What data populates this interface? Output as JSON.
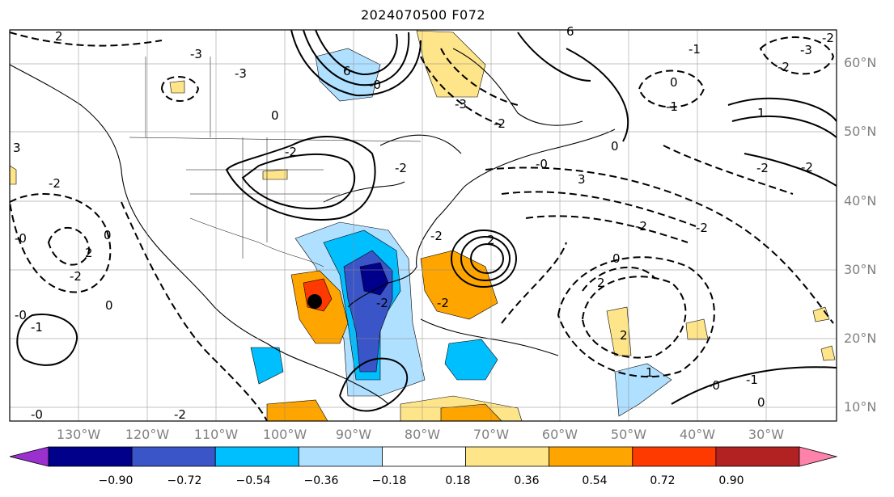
{
  "title": "2024070500 F072",
  "lat_labels": [
    "60°N",
    "50°N",
    "40°N",
    "30°N",
    "20°N",
    "10°N"
  ],
  "lon_labels": [
    "130°W",
    "120°W",
    "110°W",
    "100°W",
    "90°W",
    "80°W",
    "70°W",
    "60°W",
    "50°W",
    "40°W",
    "30°W"
  ],
  "contour_labels": [
    "2",
    "-3",
    "6",
    "-3",
    "0",
    "-1",
    "-2",
    "0",
    "-3",
    "3",
    "-2",
    "-2",
    "1",
    "-2",
    "-3",
    "-2",
    "2",
    "-0",
    "-2",
    "-2",
    "0",
    "3",
    "-0",
    "-2",
    "0",
    "2",
    "-2",
    "2",
    "-2",
    "-2",
    "-2",
    "0",
    "-0",
    "-1",
    "1",
    "-0",
    "-1",
    "2",
    "0",
    "-2",
    "0",
    "-0",
    "-0",
    "-1",
    "6",
    "-2",
    "-2"
  ],
  "colorbar": {
    "ticks": [
      "−0.90",
      "−0.72",
      "−0.54",
      "−0.36",
      "−0.18",
      "0.18",
      "0.36",
      "0.54",
      "0.72",
      "0.90"
    ],
    "colors": [
      "#9a30cd",
      "#00008b",
      "#3a55c8",
      "#00bfff",
      "#b0e0ff",
      "#ffffff",
      "#ffe58a",
      "#ffa500",
      "#ff3a00",
      "#b22222",
      "#ff82ab"
    ]
  },
  "chart_data": {
    "type": "heatmap",
    "title": "2024070500 F072",
    "map_extent_lon": [
      -140,
      -25
    ],
    "map_extent_lat": [
      7,
      65
    ],
    "lon_ticks": [
      -130,
      -120,
      -110,
      -100,
      -90,
      -80,
      -70,
      -60,
      -50,
      -40,
      -30
    ],
    "lat_ticks": [
      60,
      50,
      40,
      30,
      20,
      10
    ],
    "colorbar_levels": [
      -0.9,
      -0.72,
      -0.54,
      -0.36,
      -0.18,
      0.18,
      0.36,
      0.54,
      0.72,
      0.9
    ],
    "colorbar_extend": "both",
    "storm_center_lon_lat": [
      -96.5,
      25.2
    ]
  }
}
